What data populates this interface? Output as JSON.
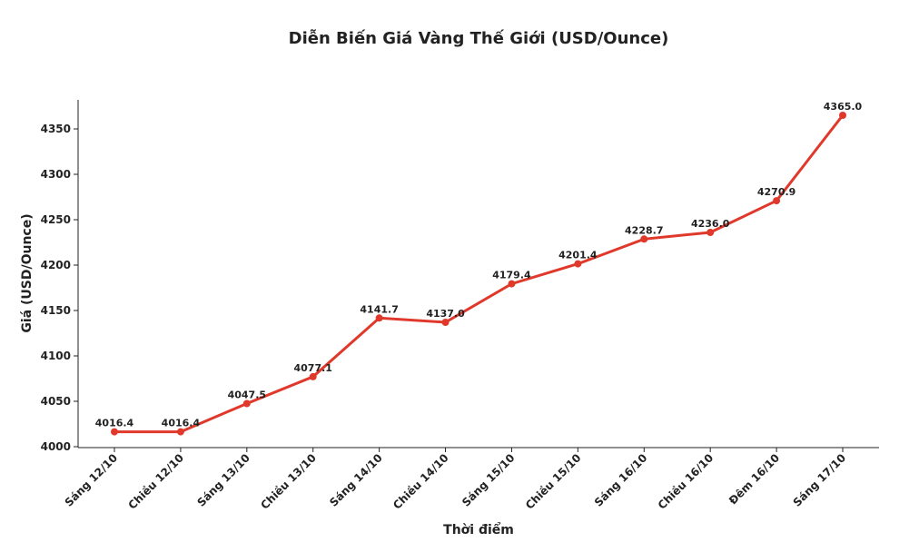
{
  "chart_data": {
    "type": "line",
    "title": "Diễn Biến Giá Vàng Thế Giới (USD/Ounce)",
    "x_label": "Thời điểm",
    "y_label": "Giá (USD/Ounce)",
    "categories": [
      "Sáng 12/10",
      "Chiều 12/10",
      "Sáng 13/10",
      "Chiều 13/10",
      "Sáng 14/10",
      "Chiều 14/10",
      "Sáng 15/10",
      "Chiều 15/10",
      "Sáng 16/10",
      "Chiều 16/10",
      "Đêm 16/10",
      "Sáng 17/10"
    ],
    "values": [
      4016.4,
      4016.4,
      4047.5,
      4077.1,
      4141.7,
      4137.0,
      4179.4,
      4201.4,
      4228.7,
      4236.0,
      4270.9,
      4365.0
    ],
    "value_labels": [
      "4016.4",
      "4016.4",
      "4047.5",
      "4077.1",
      "4141.7",
      "4137.0",
      "4179.4",
      "4201.4",
      "4228.7",
      "4236.0",
      "4270.9",
      "4365.0"
    ],
    "color": "#e0392b",
    "ylim": [
      3999,
      4382
    ],
    "yticks": [
      4000,
      4050,
      4100,
      4150,
      4200,
      4250,
      4300,
      4350
    ]
  }
}
